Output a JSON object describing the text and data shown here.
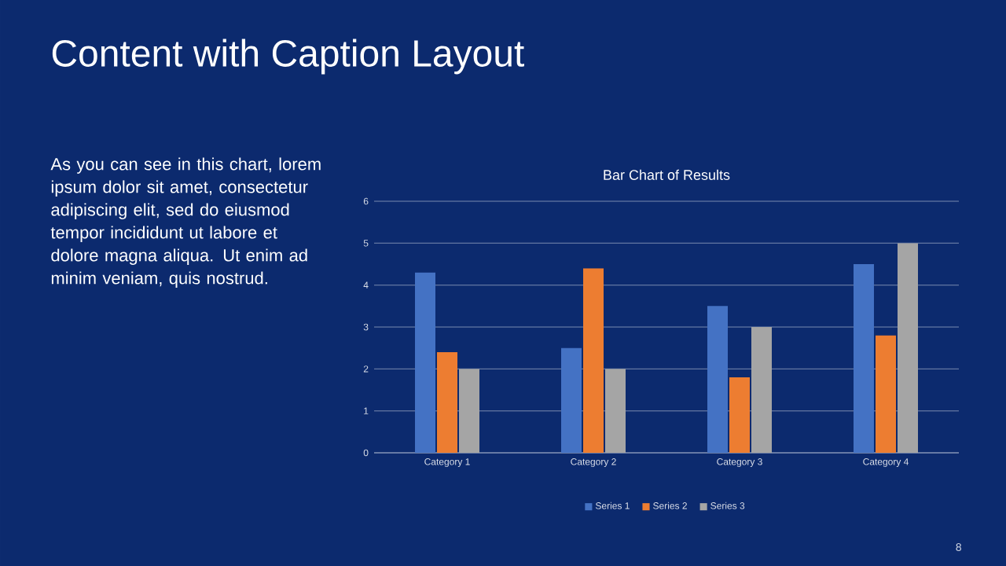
{
  "chart_data": {
    "type": "bar",
    "title": "Bar Chart of Results",
    "categories": [
      "Category 1",
      "Category 2",
      "Category 3",
      "Category 4"
    ],
    "series": [
      {
        "name": "Series 1",
        "color": "#4472c4",
        "values": [
          4.3,
          2.5,
          3.5,
          4.5
        ]
      },
      {
        "name": "Series 2",
        "color": "#ed7d31",
        "values": [
          2.4,
          4.4,
          1.8,
          2.8
        ]
      },
      {
        "name": "Series 3",
        "color": "#a5a5a5",
        "values": [
          2,
          2,
          3,
          5
        ]
      }
    ],
    "ylim": [
      0,
      6
    ],
    "yticks": [
      0,
      1,
      2,
      3,
      4,
      5,
      6
    ],
    "grid": "y",
    "legend": "bottom",
    "annotations": [
      "Content with Caption Layout",
      "As you can see in this chart, lorem ipsum dolor sit amet, consectetur adipiscing elit, sed do eiusmod tempor incididunt ut labore et dolore magna aliqua. Ut enim ad minim veniam, quis nostrud.",
      "8"
    ]
  }
}
